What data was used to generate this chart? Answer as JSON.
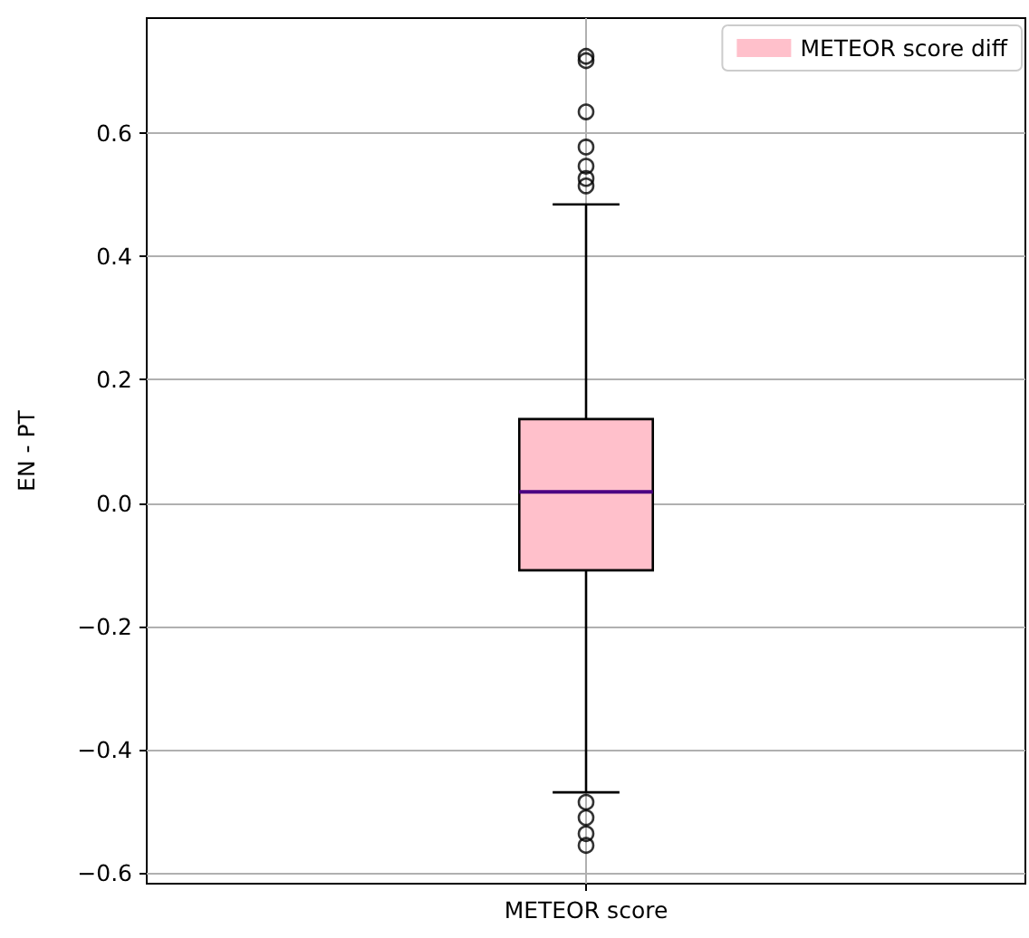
{
  "chart_data": {
    "type": "box",
    "xlabel": null,
    "ylabel": "EN - PT",
    "categories": [
      "METEOR score"
    ],
    "series": [
      {
        "name": "METEOR score diff",
        "color": "#ffc0cb",
        "boxes": [
          {
            "low": -0.469,
            "q1": -0.109,
            "median": 0.018,
            "q3": 0.136,
            "high": 0.484,
            "outliers": [
              0.724,
              0.717,
              0.634,
              0.577,
              0.546,
              0.526,
              0.514,
              -0.485,
              -0.51,
              -0.536,
              -0.555
            ]
          }
        ]
      }
    ],
    "ylim": [
      -0.617,
      0.786
    ],
    "yticks": [
      {
        "value": -0.6,
        "label": "−0.6"
      },
      {
        "value": -0.4,
        "label": "−0.4"
      },
      {
        "value": -0.2,
        "label": "−0.2"
      },
      {
        "value": 0,
        "label": "0.0"
      },
      {
        "value": 0.2,
        "label": "0.2"
      },
      {
        "value": 0.4,
        "label": "0.4"
      },
      {
        "value": 0.6,
        "label": "0.6"
      }
    ],
    "grid": true,
    "legend": "top right"
  }
}
